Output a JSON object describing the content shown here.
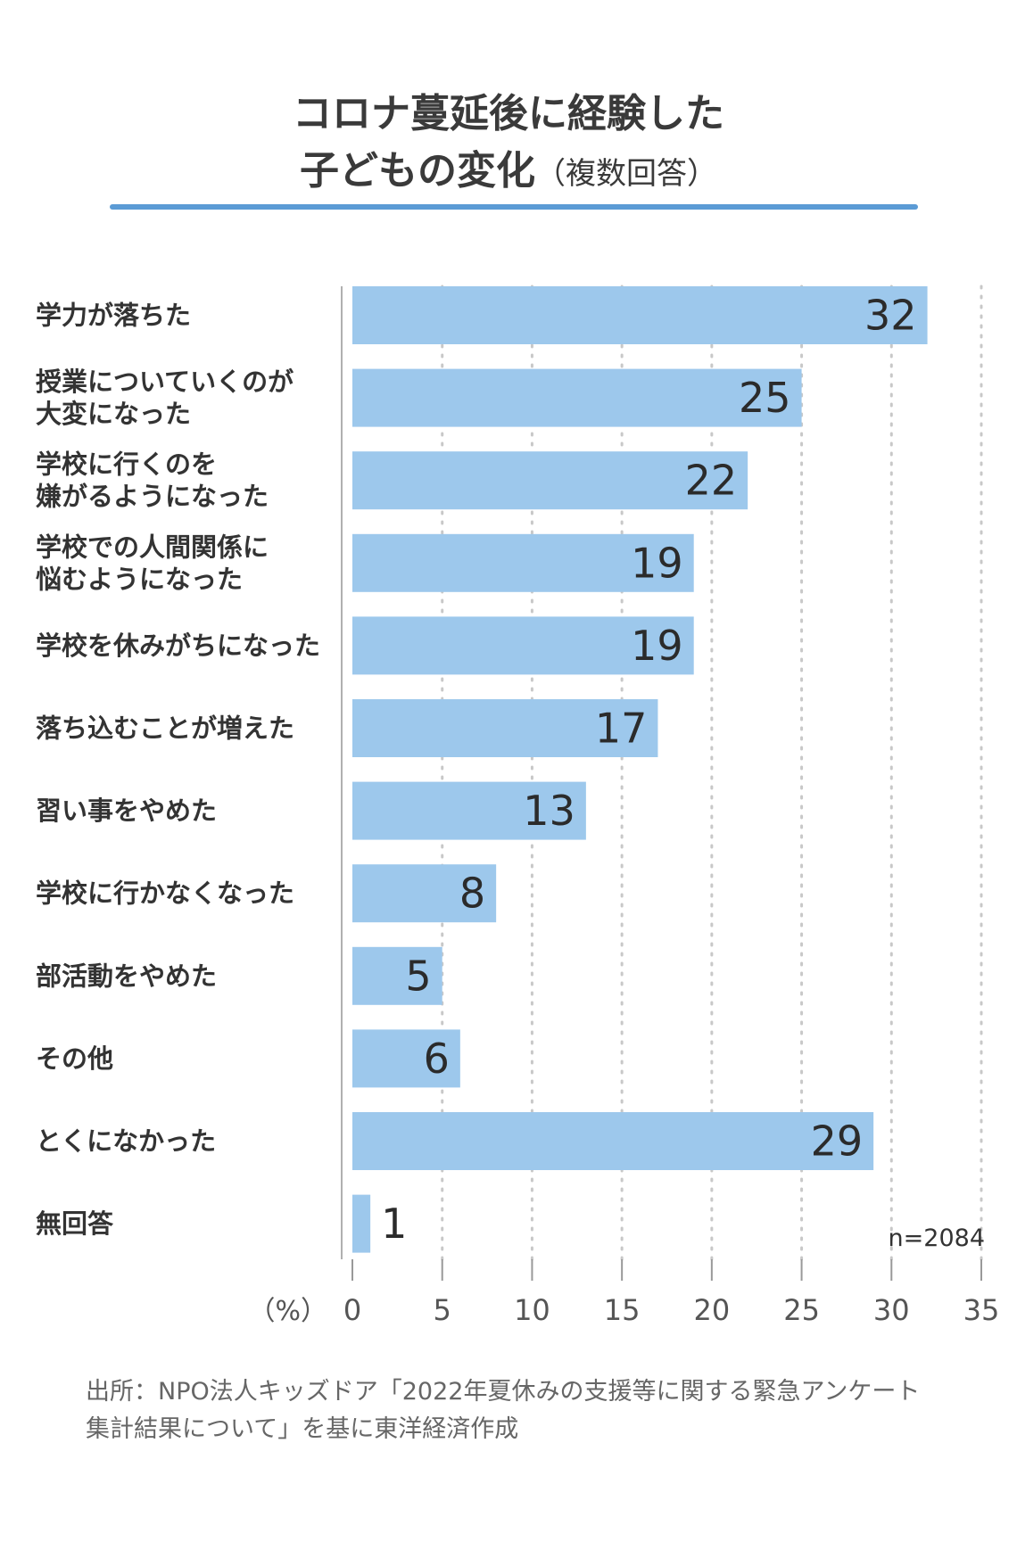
{
  "title": {
    "line1": "コロナ蔓延後に経験した",
    "line2": "子どもの変化",
    "line2_note": "（複数回答）"
  },
  "colors": {
    "bar": "#9dc8ec",
    "title_rule": "#5b9bd5",
    "grid": "#c8c8c8"
  },
  "chart_data": {
    "type": "bar",
    "orientation": "horizontal",
    "categories": [
      [
        "学力が落ちた"
      ],
      [
        "授業についていくのが",
        "大変になった"
      ],
      [
        "学校に行くのを",
        "嫌がるようになった"
      ],
      [
        "学校での人間関係に",
        "悩むようになった"
      ],
      [
        "学校を休みがちになった"
      ],
      [
        "落ち込むことが増えた"
      ],
      [
        "習い事をやめた"
      ],
      [
        "学校に行かなくなった"
      ],
      [
        "部活動をやめた"
      ],
      [
        "その他"
      ],
      [
        "とくになかった"
      ],
      [
        "無回答"
      ]
    ],
    "values": [
      32,
      25,
      22,
      19,
      19,
      17,
      13,
      8,
      5,
      6,
      29,
      1
    ],
    "xlim": [
      0,
      35
    ],
    "xticks": [
      0,
      5,
      10,
      15,
      20,
      25,
      30,
      35
    ],
    "unit_label": "（%）",
    "sample_size": "n=2084",
    "grid": "vertical dotted"
  },
  "source": {
    "line1": "出所：NPO法人キッズドア「2022年夏休みの支援等に関する緊急アンケート",
    "line2": "集計結果について」を基に東洋経済作成"
  }
}
